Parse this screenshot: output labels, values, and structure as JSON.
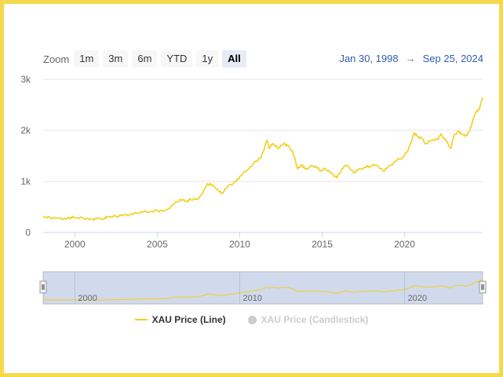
{
  "zoom": {
    "label": "Zoom",
    "buttons": [
      "1m",
      "3m",
      "6m",
      "YTD",
      "1y",
      "All"
    ],
    "active": "All"
  },
  "range": {
    "from": "Jan 30, 1998",
    "arrow": "→",
    "to": "Sep 25, 2024"
  },
  "colors": {
    "series": "#f2cf1c",
    "navigator_fill": "#ccd6eb",
    "grid": "#e6e6e6",
    "axis_text": "#666666"
  },
  "chart_data": {
    "type": "line",
    "xlim": [
      1998.08,
      2024.73
    ],
    "ylim": [
      0,
      3000
    ],
    "yticks": [
      0,
      1000,
      2000,
      3000
    ],
    "ytick_labels": [
      "0",
      "1k",
      "2k",
      "3k"
    ],
    "xticks": [
      2000,
      2005,
      2010,
      2015,
      2020
    ],
    "xtick_labels": [
      "2000",
      "2005",
      "2010",
      "2015",
      "2020"
    ],
    "navigator_ticks": [
      2000,
      2010,
      2020
    ],
    "navigator_tick_labels": [
      "2000",
      "2010",
      "2020"
    ],
    "grid": "horizontal",
    "legend": "bottom-center",
    "series": [
      {
        "name": "XAU Price (Line)",
        "visible": true,
        "x": [
          1998.08,
          1998.5,
          1999.0,
          1999.5,
          1999.75,
          2000.0,
          2000.5,
          2001.0,
          2001.3,
          2001.8,
          2002.0,
          2002.5,
          2003.0,
          2003.5,
          2004.0,
          2004.5,
          2005.0,
          2005.5,
          2006.0,
          2006.4,
          2006.8,
          2007.0,
          2007.5,
          2008.0,
          2008.2,
          2008.6,
          2008.9,
          2009.3,
          2009.8,
          2010.0,
          2010.5,
          2011.0,
          2011.3,
          2011.65,
          2011.8,
          2012.0,
          2012.3,
          2012.7,
          2012.9,
          2013.2,
          2013.5,
          2013.8,
          2014.0,
          2014.3,
          2014.6,
          2014.9,
          2015.2,
          2015.6,
          2015.9,
          2016.2,
          2016.5,
          2016.9,
          2017.2,
          2017.7,
          2017.9,
          2018.3,
          2018.7,
          2019.0,
          2019.5,
          2019.9,
          2020.2,
          2020.6,
          2020.8,
          2021.0,
          2021.3,
          2021.6,
          2022.0,
          2022.2,
          2022.5,
          2022.8,
          2023.0,
          2023.3,
          2023.5,
          2023.8,
          2024.0,
          2024.3,
          2024.5,
          2024.73
        ],
        "y": [
          300,
          290,
          287,
          260,
          300,
          285,
          280,
          265,
          265,
          280,
          300,
          315,
          350,
          350,
          410,
          395,
          430,
          430,
          550,
          650,
          600,
          650,
          660,
          920,
          960,
          850,
          760,
          920,
          1000,
          1100,
          1230,
          1400,
          1480,
          1800,
          1650,
          1740,
          1650,
          1750,
          1700,
          1600,
          1250,
          1320,
          1240,
          1290,
          1300,
          1200,
          1250,
          1160,
          1070,
          1250,
          1320,
          1170,
          1240,
          1280,
          1300,
          1320,
          1200,
          1290,
          1400,
          1480,
          1600,
          1950,
          1880,
          1850,
          1740,
          1800,
          1820,
          1930,
          1800,
          1650,
          1900,
          1980,
          1920,
          1900,
          2050,
          2350,
          2400,
          2650
        ]
      },
      {
        "name": "XAU Price (Candlestick)",
        "visible": false
      }
    ]
  }
}
